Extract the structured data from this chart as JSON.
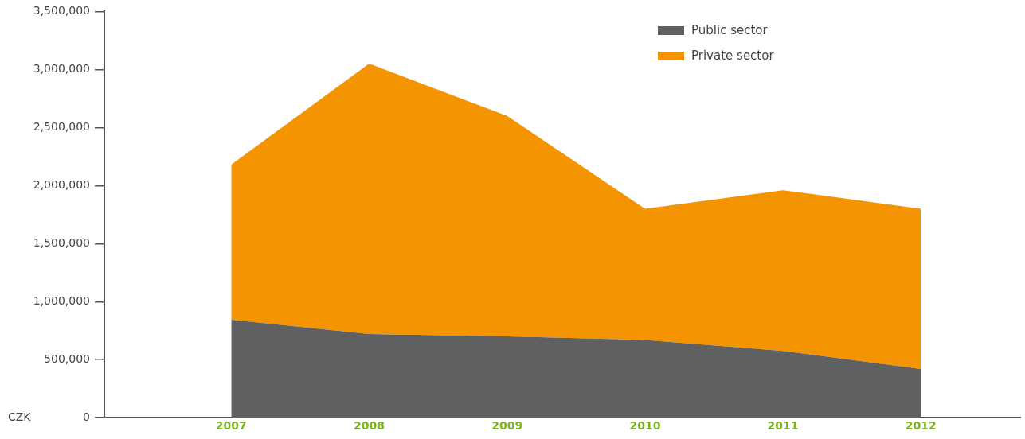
{
  "chart_data": {
    "type": "area",
    "stacked": true,
    "ylabel": "CZK",
    "x": [
      2007,
      2008,
      2009,
      2010,
      2011,
      2012
    ],
    "xlim": [
      2006.08,
      2012.72
    ],
    "xticks": [
      2007,
      2008,
      2009,
      2010,
      2011,
      2012
    ],
    "ylim": [
      0,
      3500000
    ],
    "yticks": [
      {
        "value": 0,
        "label": "0"
      },
      {
        "value": 500000,
        "label": "500,000"
      },
      {
        "value": 1000000,
        "label": "1,000,000"
      },
      {
        "value": 1500000,
        "label": "1,500,000"
      },
      {
        "value": 2000000,
        "label": "2,000,000"
      },
      {
        "value": 2500000,
        "label": "2,500,000"
      },
      {
        "value": 3000000,
        "label": "3,000,000"
      },
      {
        "value": 3500000,
        "label": "3,500,000"
      }
    ],
    "series": [
      {
        "name": "Public sector",
        "color": "#5f6062",
        "values": [
          845000,
          720000,
          700000,
          670000,
          575000,
          420000
        ]
      },
      {
        "name": "Private sector",
        "color": "#f39400",
        "values": [
          1335000,
          2330000,
          1900000,
          1130000,
          1385000,
          1380000
        ]
      }
    ],
    "grid": false,
    "legend": "top right"
  }
}
